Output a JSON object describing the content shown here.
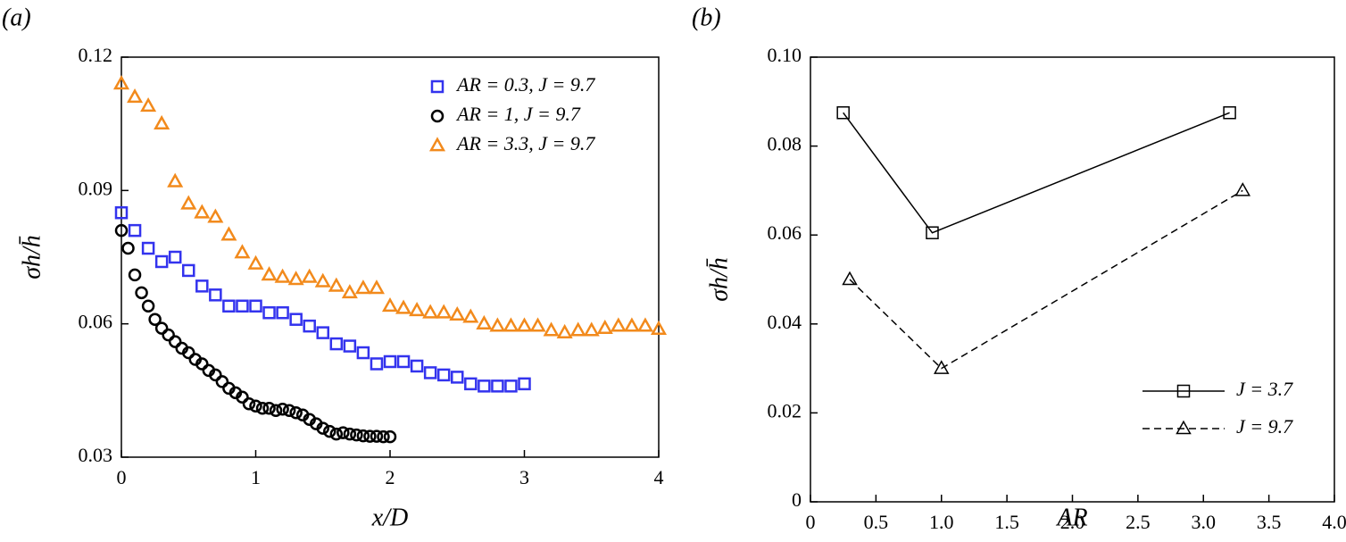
{
  "chart_data": [
    {
      "type": "scatter",
      "title": "(a)",
      "x_label": "x/D",
      "y_label": "σh/h̄",
      "xlim": [
        0,
        4
      ],
      "xticks": [
        0,
        1,
        2,
        3,
        4
      ],
      "ylim": [
        0.03,
        0.12
      ],
      "yticks": [
        0.03,
        0.06,
        0.09,
        0.12
      ],
      "legend": "upper right",
      "series": [
        {
          "name": "AR = 0.3, J = 9.7",
          "color": "#3333ee",
          "marker": "square",
          "x": [
            0,
            0.1,
            0.2,
            0.3,
            0.4,
            0.5,
            0.6,
            0.7,
            0.8,
            0.9,
            1.0,
            1.1,
            1.2,
            1.3,
            1.4,
            1.5,
            1.6,
            1.7,
            1.8,
            1.9,
            2.0,
            2.1,
            2.2,
            2.3,
            2.4,
            2.5,
            2.6,
            2.7,
            2.8,
            2.9,
            3.0
          ],
          "values": [
            0.085,
            0.081,
            0.077,
            0.074,
            0.075,
            0.072,
            0.0685,
            0.0665,
            0.064,
            0.064,
            0.064,
            0.0625,
            0.0625,
            0.061,
            0.0595,
            0.058,
            0.0555,
            0.055,
            0.0535,
            0.051,
            0.0515,
            0.0515,
            0.0505,
            0.049,
            0.0485,
            0.048,
            0.0465,
            0.046,
            0.046,
            0.046,
            0.0465
          ]
        },
        {
          "name": "AR = 1,    J = 9.7",
          "color": "#000000",
          "marker": "circle",
          "x": [
            0,
            0.05,
            0.1,
            0.15,
            0.2,
            0.25,
            0.3,
            0.35,
            0.4,
            0.45,
            0.5,
            0.55,
            0.6,
            0.65,
            0.7,
            0.75,
            0.8,
            0.85,
            0.9,
            0.95,
            1.0,
            1.05,
            1.1,
            1.15,
            1.2,
            1.25,
            1.3,
            1.35,
            1.4,
            1.45,
            1.5,
            1.55,
            1.6,
            1.65,
            1.7,
            1.75,
            1.8,
            1.85,
            1.9,
            1.95,
            2.0
          ],
          "values": [
            0.081,
            0.077,
            0.071,
            0.067,
            0.064,
            0.061,
            0.059,
            0.0575,
            0.056,
            0.0545,
            0.0535,
            0.052,
            0.051,
            0.0495,
            0.0485,
            0.047,
            0.0455,
            0.0445,
            0.0435,
            0.042,
            0.0415,
            0.041,
            0.041,
            0.0405,
            0.0408,
            0.0405,
            0.04,
            0.0395,
            0.0385,
            0.0375,
            0.0365,
            0.0358,
            0.0352,
            0.0355,
            0.0352,
            0.035,
            0.0348,
            0.0347,
            0.0347,
            0.0346,
            0.0346
          ]
        },
        {
          "name": "AR = 3.3, J = 9.7",
          "color": "#f28a1c",
          "marker": "triangle",
          "x": [
            0,
            0.1,
            0.2,
            0.3,
            0.4,
            0.5,
            0.6,
            0.7,
            0.8,
            0.9,
            1.0,
            1.1,
            1.2,
            1.3,
            1.4,
            1.5,
            1.6,
            1.7,
            1.8,
            1.9,
            2.0,
            2.1,
            2.2,
            2.3,
            2.4,
            2.5,
            2.6,
            2.7,
            2.8,
            2.9,
            3.0,
            3.1,
            3.2,
            3.3,
            3.4,
            3.5,
            3.6,
            3.7,
            3.8,
            3.9,
            4.0
          ],
          "values": [
            0.114,
            0.111,
            0.109,
            0.105,
            0.092,
            0.087,
            0.085,
            0.084,
            0.08,
            0.076,
            0.0735,
            0.071,
            0.0705,
            0.07,
            0.0705,
            0.0695,
            0.0685,
            0.067,
            0.068,
            0.068,
            0.064,
            0.0635,
            0.063,
            0.0625,
            0.0625,
            0.062,
            0.0615,
            0.06,
            0.0595,
            0.0595,
            0.0595,
            0.0595,
            0.0585,
            0.058,
            0.0585,
            0.0585,
            0.059,
            0.0595,
            0.0595,
            0.0595,
            0.0588
          ]
        }
      ]
    },
    {
      "type": "line",
      "title": "(b)",
      "x_label": "AR",
      "y_label": "σh/h̄",
      "xlim": [
        0,
        4
      ],
      "xticks": [
        0,
        0.5,
        {
          "value": 1,
          "label": "1.0"
        },
        1.5,
        {
          "value": 2,
          "label": "2.0"
        },
        2.5,
        {
          "value": 3,
          "label": "3.0"
        },
        3.5,
        {
          "value": 4,
          "label": "4.0"
        }
      ],
      "ylim": [
        0,
        0.1
      ],
      "yticks": [
        0,
        0.02,
        0.04,
        0.06,
        0.08,
        {
          "value": 0.1,
          "label": "0.10"
        }
      ],
      "legend": "lower right",
      "series": [
        {
          "name": "J = 3.7",
          "color": "#000000",
          "marker": "square",
          "line_style": "solid",
          "x": [
            0.25,
            0.93,
            3.2
          ],
          "values": [
            0.0875,
            0.0605,
            0.0875
          ]
        },
        {
          "name": "J = 9.7",
          "color": "#000000",
          "marker": "triangle",
          "line_style": "dashed",
          "x": [
            0.3,
            1.0,
            3.3
          ],
          "values": [
            0.05,
            0.03,
            0.07
          ]
        }
      ]
    }
  ]
}
